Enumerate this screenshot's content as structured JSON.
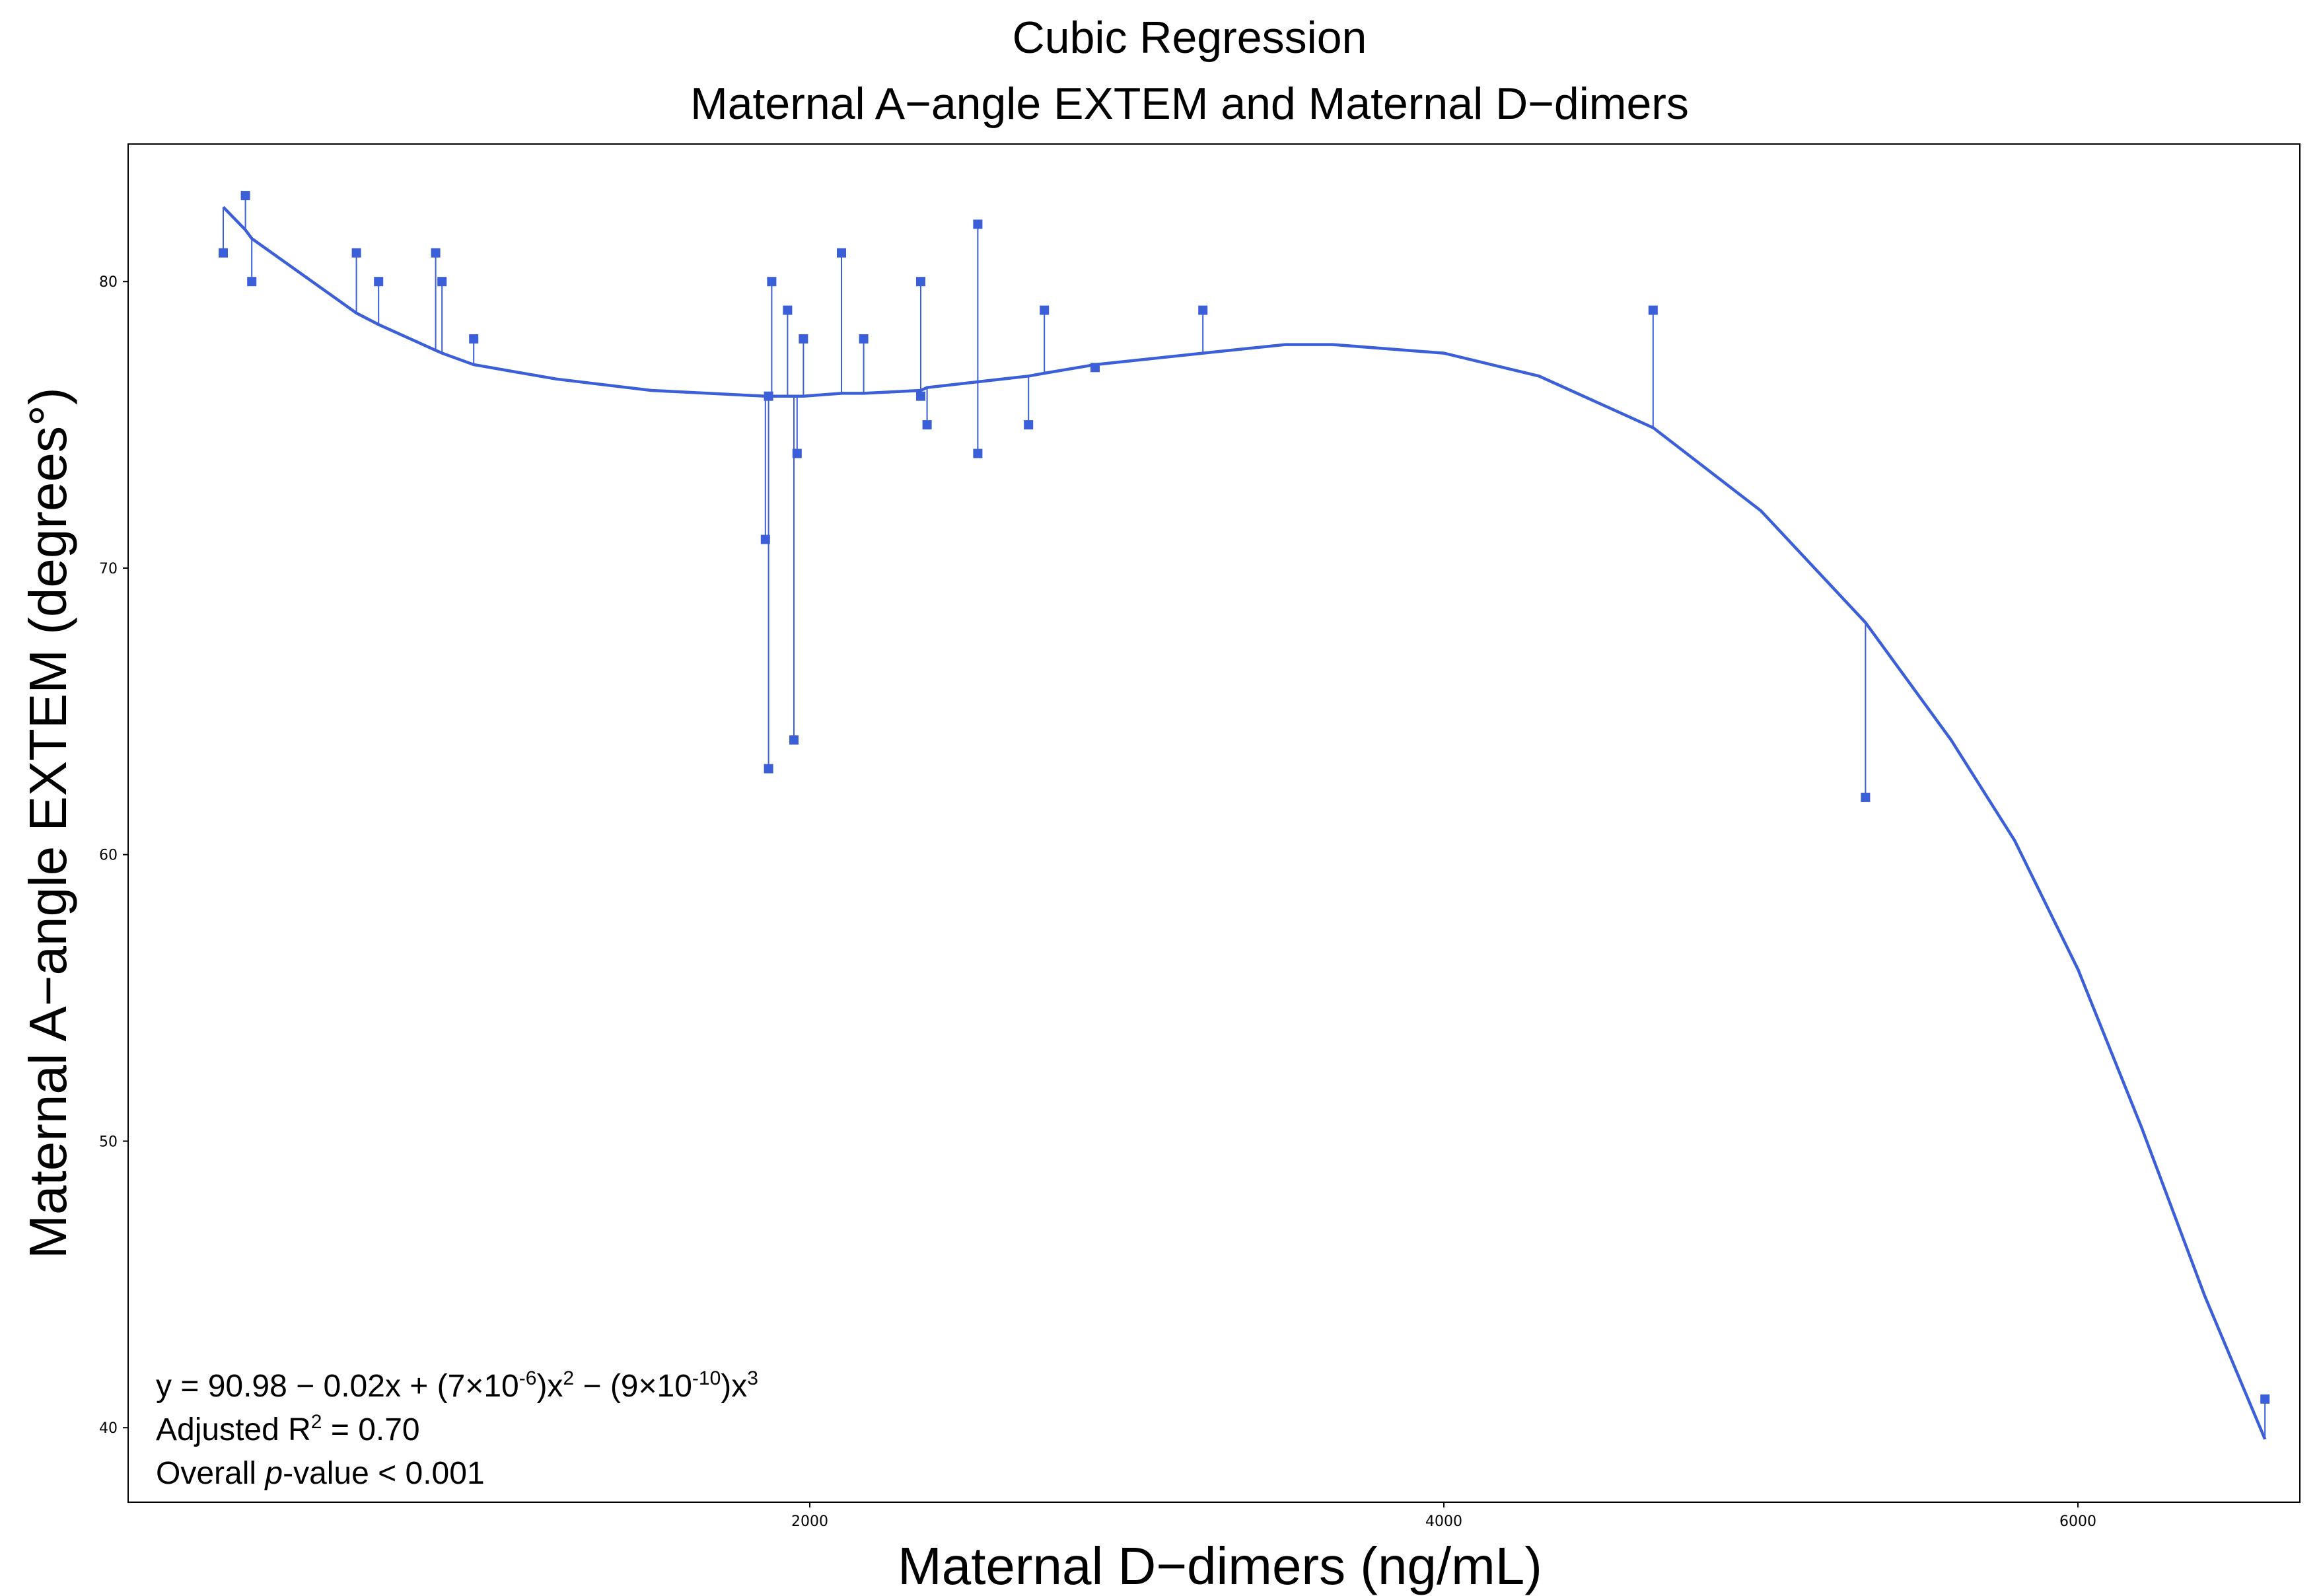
{
  "chart_data": {
    "type": "scatter",
    "title_line1": "Cubic Regression",
    "title_line2": "Maternal A−angle EXTEM and Maternal D−dimers",
    "xlabel": "Maternal D−dimers (ng/mL)",
    "ylabel": "Maternal A−angle EXTEM (degrees°)",
    "xlim": [
      -150,
      6700
    ],
    "ylim": [
      37.4,
      84.8
    ],
    "x_ticks": [
      2000,
      4000,
      6000
    ],
    "x_tick_labels": [
      "2000",
      "4000",
      "6000"
    ],
    "y_ticks": [
      40,
      50,
      60,
      70,
      80
    ],
    "y_tick_labels": [
      "40",
      "50",
      "60",
      "70",
      "80"
    ],
    "grid": false,
    "series": [
      {
        "name": "observed",
        "marker": "square",
        "x": [
          150,
          220,
          240,
          570,
          640,
          820,
          840,
          940,
          1860,
          1870,
          1870,
          1880,
          1930,
          1950,
          1960,
          1980,
          2100,
          2170,
          2350,
          2350,
          2370,
          2530,
          2530,
          2690,
          2740,
          2900,
          3240,
          4660,
          5330,
          6590
        ],
        "y": [
          81,
          83,
          80,
          81,
          80,
          81,
          80,
          78,
          71,
          63,
          76,
          80,
          79,
          64,
          74,
          78,
          81,
          78,
          80,
          76,
          75,
          82,
          74,
          75,
          79,
          77,
          79,
          79,
          62,
          41
        ]
      },
      {
        "name": "cubic fit",
        "type": "line",
        "x": [
          150,
          220,
          240,
          570,
          640,
          820,
          840,
          940,
          1200,
          1500,
          1860,
          1870,
          1880,
          1930,
          1950,
          1960,
          1980,
          2100,
          2170,
          2350,
          2370,
          2530,
          2690,
          2740,
          2900,
          3240,
          3500,
          3650,
          4000,
          4300,
          4660,
          5000,
          5330,
          5600,
          5800,
          6000,
          6200,
          6400,
          6590
        ],
        "y": [
          82.6,
          81.8,
          81.5,
          78.9,
          78.5,
          77.6,
          77.5,
          77.1,
          76.6,
          76.2,
          76.0,
          76.0,
          76.0,
          76.0,
          76.0,
          76.0,
          76.0,
          76.1,
          76.1,
          76.2,
          76.3,
          76.5,
          76.7,
          76.8,
          77.1,
          77.5,
          77.8,
          77.8,
          77.5,
          76.7,
          74.9,
          72.0,
          68.1,
          64.0,
          60.5,
          56.0,
          50.5,
          44.6,
          39.6
        ]
      }
    ],
    "annotation": {
      "eq_y": "y = 90.98 − 0.02x + (7×10",
      "eq_exp1": "-6",
      "eq_mid1": ")x",
      "eq_sq": "2",
      "eq_mid2": " − (9×10",
      "eq_exp2": "-10",
      "eq_mid3": ")x",
      "eq_cube": "3",
      "r2_prefix": "Adjusted R",
      "r2_sup": "2",
      "r2_suffix": " = 0.70",
      "p_prefix": "Overall ",
      "p_italic": "p",
      "p_suffix": "-value < 0.001",
      "placement": "bottom-left"
    },
    "colors": {
      "series": "#3a5fd9",
      "axis": "#000000"
    }
  }
}
